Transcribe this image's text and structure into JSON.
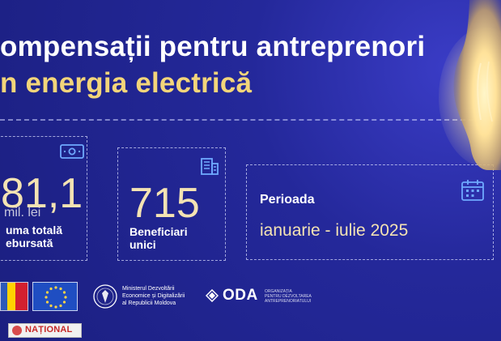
{
  "headline": {
    "line_1": "ompensații pentru antreprenori",
    "line_2": "n energia electrică"
  },
  "stats": [
    {
      "value": "81,1",
      "unit": "mil. lei",
      "label_line_1": "uma totală",
      "label_line_2": "ebursată"
    },
    {
      "value": "715",
      "label_line_1": "Beneficiari",
      "label_line_2": "unici"
    },
    {
      "title": "Perioada",
      "value": "ianuarie - iulie 2025"
    }
  ],
  "footer": {
    "ministry_text": "Ministerul Dezvoltării\nEconomice și Digitalizării\nal Republicii Moldova",
    "oda_name": "ODA",
    "oda_small": "ORGANIZAȚIA\nPENTRU DEZVOLTAREA\nANTREPRENORIATULUI",
    "national_label": "NAȚIONAL"
  },
  "icons": {
    "money": "money-icon",
    "building": "building-icon",
    "calendar": "calendar-icon",
    "bulb": "light-bulb-icon"
  },
  "colors": {
    "background": "#1f238a",
    "accent_yellow": "#f3d57a",
    "accent_light": "#f4e3b3",
    "icon_blue": "#6fa9ff"
  }
}
